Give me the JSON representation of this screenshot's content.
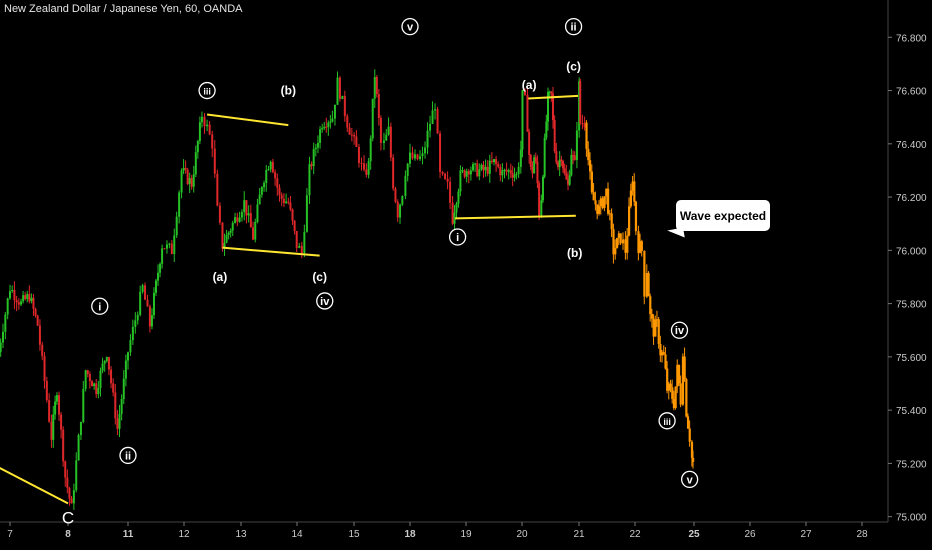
{
  "chart_data": {
    "type": "candlestick",
    "title": "New Zealand Dollar / Japanese Yen, 60, OANDA",
    "ylim": [
      74.98,
      76.94
    ],
    "y_ticks": [
      "76.800",
      "76.600",
      "76.400",
      "76.200",
      "76.000",
      "75.800",
      "75.600",
      "75.400",
      "75.200",
      "75.000"
    ],
    "x_ticks": [
      "7",
      "8",
      "11",
      "12",
      "13",
      "14",
      "15",
      "18",
      "19",
      "20",
      "21",
      "22",
      "25",
      "26",
      "27",
      "28"
    ],
    "x_tick_days": [
      7,
      8,
      11,
      12,
      13,
      14,
      15,
      18,
      19,
      20,
      21,
      22,
      25,
      26,
      27,
      28
    ],
    "price_path": [
      [
        6.8,
        75.57
      ],
      [
        7.0,
        75.86
      ],
      [
        7.2,
        75.8
      ],
      [
        7.35,
        75.83
      ],
      [
        7.5,
        75.72
      ],
      [
        7.75,
        75.3
      ],
      [
        7.85,
        75.48
      ],
      [
        8.0,
        75.15
      ],
      [
        8.1,
        75.03
      ],
      [
        8.3,
        75.55
      ],
      [
        8.45,
        75.48
      ],
      [
        8.6,
        75.62
      ],
      [
        8.75,
        75.33
      ],
      [
        8.9,
        75.62
      ],
      [
        9.0,
        75.7
      ],
      [
        9.2,
        75.86
      ],
      [
        9.35,
        75.72
      ],
      [
        9.6,
        76.02
      ],
      [
        9.8,
        76.0
      ],
      [
        9.9,
        76.15
      ],
      [
        10.0,
        76.3
      ],
      [
        10.2,
        76.25
      ],
      [
        10.4,
        76.51
      ],
      [
        10.5,
        76.46
      ],
      [
        10.6,
        76.4
      ],
      [
        10.7,
        76.15
      ],
      [
        10.8,
        76.02
      ],
      [
        11.0,
        76.1
      ],
      [
        11.2,
        76.18
      ],
      [
        11.35,
        76.05
      ],
      [
        11.5,
        76.25
      ],
      [
        11.65,
        76.35
      ],
      [
        11.8,
        76.2
      ],
      [
        11.95,
        76.18
      ],
      [
        12.1,
        76.02
      ],
      [
        12.2,
        75.99
      ],
      [
        12.35,
        76.3
      ],
      [
        12.6,
        76.48
      ],
      [
        12.8,
        76.5
      ],
      [
        12.9,
        76.63
      ],
      [
        13.05,
        76.48
      ],
      [
        13.2,
        76.38
      ],
      [
        13.45,
        76.28
      ],
      [
        13.6,
        76.32
      ],
      [
        13.8,
        76.66
      ],
      [
        14.0,
        76.4
      ],
      [
        14.1,
        76.4
      ],
      [
        14.25,
        76.45
      ],
      [
        14.4,
        76.25
      ],
      [
        14.55,
        76.14
      ],
      [
        14.7,
        76.22
      ],
      [
        14.8,
        76.3
      ],
      [
        14.95,
        76.35
      ],
      [
        15.05,
        76.34
      ],
      [
        15.2,
        76.35
      ],
      [
        15.35,
        76.48
      ],
      [
        15.45,
        76.55
      ],
      [
        15.55,
        76.28
      ],
      [
        15.7,
        76.24
      ],
      [
        15.8,
        76.12
      ],
      [
        15.95,
        76.28
      ],
      [
        16.1,
        76.31
      ],
      [
        16.25,
        76.3
      ],
      [
        16.4,
        76.3
      ],
      [
        16.55,
        76.33
      ],
      [
        16.7,
        76.29
      ],
      [
        16.85,
        76.3
      ],
      [
        16.95,
        76.28
      ],
      [
        17.1,
        76.38
      ],
      [
        17.2,
        76.58
      ],
      [
        17.35,
        76.56
      ],
      [
        17.5,
        76.47
      ],
      [
        17.6,
        76.36
      ],
      [
        17.7,
        76.3
      ],
      [
        17.8,
        76.3
      ],
      [
        17.9,
        76.35
      ],
      [
        18.0,
        76.32
      ],
      [
        18.1,
        76.25
      ],
      [
        18.2,
        76.14
      ],
      [
        18.3,
        76.2
      ],
      [
        18.45,
        76.4
      ],
      [
        18.6,
        76.57
      ],
      [
        18.75,
        76.58
      ],
      [
        18.9,
        76.38
      ],
      [
        19.05,
        76.32
      ],
      [
        19.2,
        76.36
      ],
      [
        19.35,
        76.28
      ],
      [
        19.5,
        76.24
      ],
      [
        19.65,
        76.37
      ],
      [
        19.8,
        76.32
      ],
      [
        20.0,
        76.62
      ],
      [
        20.05,
        76.48
      ],
      [
        20.25,
        76.48
      ]
    ],
    "forecast_path": [
      [
        20.25,
        76.48
      ],
      [
        20.4,
        76.2
      ],
      [
        20.55,
        76.15
      ],
      [
        20.7,
        76.22
      ],
      [
        20.85,
        76.0
      ],
      [
        21.0,
        76.05
      ],
      [
        21.1,
        76.0
      ],
      [
        21.25,
        76.28
      ],
      [
        21.35,
        76.08
      ],
      [
        21.5,
        76.02
      ],
      [
        21.7,
        76.0
      ],
      [
        21.85,
        75.85
      ],
      [
        22.0,
        75.93
      ],
      [
        22.15,
        75.75
      ],
      [
        22.3,
        75.7
      ],
      [
        22.45,
        75.72
      ],
      [
        22.6,
        75.62
      ],
      [
        22.75,
        75.6
      ],
      [
        22.9,
        75.48
      ],
      [
        23.05,
        75.47
      ],
      [
        23.2,
        75.43
      ],
      [
        23.35,
        75.55
      ],
      [
        23.5,
        75.44
      ],
      [
        23.6,
        75.63
      ],
      [
        23.75,
        75.4
      ],
      [
        23.9,
        75.3
      ],
      [
        24.0,
        75.22
      ],
      [
        24.05,
        75.2
      ]
    ],
    "wave_labels": [
      {
        "text": "C",
        "day": 8.05,
        "price": 74.99,
        "style": "plain"
      },
      {
        "text": "i",
        "day": 8.5,
        "price": 75.79,
        "style": "circle"
      },
      {
        "text": "ii",
        "day": 8.9,
        "price": 75.23,
        "style": "circle"
      },
      {
        "text": "iii",
        "day": 10.5,
        "price": 76.6,
        "style": "circle"
      },
      {
        "text": "(a)",
        "day": 10.75,
        "price": 75.9,
        "style": "paren"
      },
      {
        "text": "(b)",
        "day": 11.95,
        "price": 76.6,
        "style": "paren"
      },
      {
        "text": "(c)",
        "day": 12.55,
        "price": 75.9,
        "style": "paren"
      },
      {
        "text": "iv",
        "day": 12.65,
        "price": 75.81,
        "style": "circle"
      },
      {
        "text": "v",
        "day": 14.95,
        "price": 76.84,
        "style": "circle"
      },
      {
        "text": "i",
        "day": 15.9,
        "price": 76.05,
        "style": "circle"
      },
      {
        "text": "(a)",
        "day": 17.6,
        "price": 76.62,
        "style": "paren"
      },
      {
        "text": "ii",
        "day": 19.75,
        "price": 76.84,
        "style": "circle"
      },
      {
        "text": "(c)",
        "day": 19.75,
        "price": 76.69,
        "style": "paren"
      },
      {
        "text": "(b)",
        "day": 19.8,
        "price": 75.99,
        "style": "paren"
      },
      {
        "text": "iv",
        "day": 23.45,
        "price": 75.7,
        "style": "circle"
      },
      {
        "text": "iii",
        "day": 22.9,
        "price": 75.36,
        "style": "circle"
      },
      {
        "text": "v",
        "day": 23.9,
        "price": 75.14,
        "style": "circle"
      }
    ],
    "trendlines": [
      {
        "from": [
          6.0,
          75.19
        ],
        "to": [
          8.05,
          75.05
        ]
      },
      {
        "from": [
          10.5,
          76.51
        ],
        "to": [
          11.95,
          76.47
        ]
      },
      {
        "from": [
          10.8,
          76.01
        ],
        "to": [
          12.55,
          75.98
        ]
      },
      {
        "from": [
          17.55,
          76.57
        ],
        "to": [
          19.95,
          76.58
        ]
      },
      {
        "from": [
          15.85,
          76.12
        ],
        "to": [
          19.85,
          76.13
        ]
      }
    ],
    "colors": {
      "up": "#26c226",
      "down": "#e0282a",
      "forecast": "#ff9800",
      "trendline": "#ffe631",
      "axis_text": "#cccccc",
      "background": "#000000"
    }
  },
  "callout": {
    "text": "Wave expected"
  }
}
